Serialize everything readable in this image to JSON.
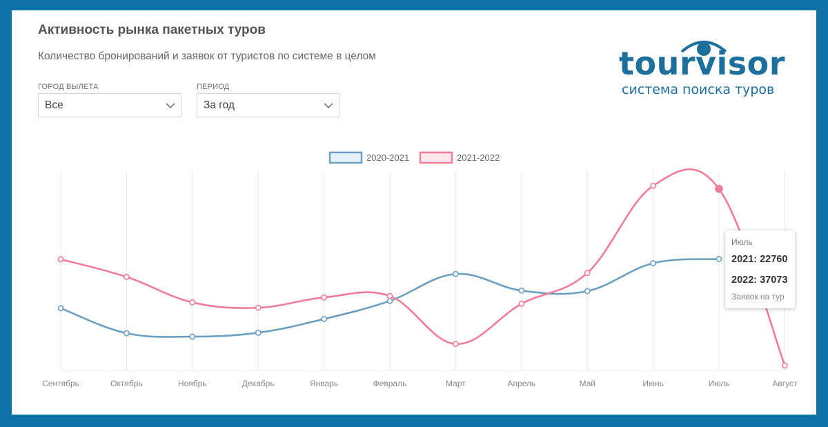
{
  "header": {
    "title": "Активность рынка пакетных туров",
    "subtitle": "Количество бронирований и заявок от туристов по системе в целом"
  },
  "filters": {
    "city": {
      "label": "ГОРОД ВЫЛЕТА",
      "value": "Все"
    },
    "period": {
      "label": "ПЕРИОД",
      "value": "За год"
    }
  },
  "logo": {
    "word": "tourvisor",
    "tagline": "система поиска туров",
    "color": "#1d6f9c"
  },
  "chart_data": {
    "type": "line",
    "categories": [
      "Сентябрь",
      "Октябрь",
      "Ноябрь",
      "Декабрь",
      "Январь",
      "Февраль",
      "Март",
      "Апрель",
      "Май",
      "Июнь",
      "Июль",
      "Август"
    ],
    "series": [
      {
        "name": "2020-2021",
        "color": "#6a9fc2",
        "values": [
          12700,
          7600,
          6900,
          7700,
          10500,
          14200,
          19700,
          16300,
          16200,
          21900,
          22760,
          null
        ]
      },
      {
        "name": "2021-2022",
        "color": "#f07c98",
        "values": [
          22700,
          19100,
          13900,
          12800,
          14900,
          15200,
          5400,
          13600,
          19900,
          37700,
          37073,
          1000
        ]
      }
    ],
    "ylim": [
      0,
      40000
    ],
    "grid": {
      "vertical": true,
      "horizontal": false
    },
    "legend": "top-center",
    "tooltip": {
      "category_index": 10,
      "title": "Июль",
      "lines": [
        "2021: 22760",
        "2022: 37073"
      ],
      "footer": "Заявок на тур"
    }
  }
}
